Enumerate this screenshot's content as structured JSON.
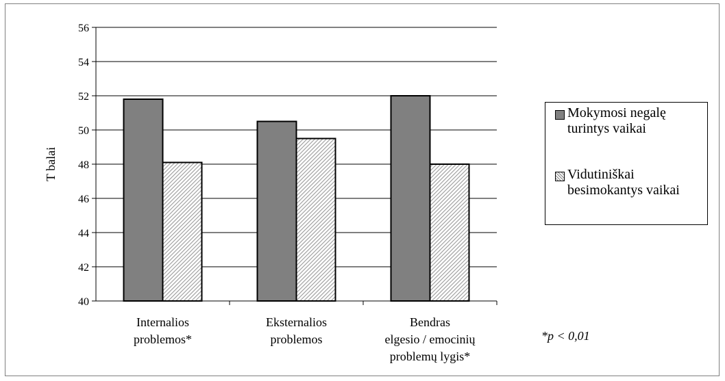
{
  "colors": {
    "series1": "#808080",
    "series2_stripe_light": "#ffffff",
    "series2_stripe_dark": "#9a9a9a"
  },
  "chart_data": {
    "type": "bar",
    "title": "",
    "ylabel": "T balai",
    "xlabel": "",
    "ylim": [
      40,
      56
    ],
    "yticks": [
      40,
      42,
      44,
      46,
      48,
      50,
      52,
      54,
      56
    ],
    "grid": true,
    "legend_position": "right",
    "categories": [
      [
        "Internalios",
        "problemos*"
      ],
      [
        "Eksternalios",
        "problemos"
      ],
      [
        "Bendras",
        "elgesio / emocinių",
        "problemų lygis*"
      ]
    ],
    "series": [
      {
        "name": "Mokymosi negalę turintys vaikai",
        "values": [
          51.8,
          50.5,
          52.0
        ],
        "pattern": "solid"
      },
      {
        "name": "Vidutiniškai besimokantys vaikai",
        "values": [
          48.1,
          49.5,
          48.0
        ],
        "pattern": "hatched"
      }
    ],
    "annotation": "*p < 0,01"
  }
}
